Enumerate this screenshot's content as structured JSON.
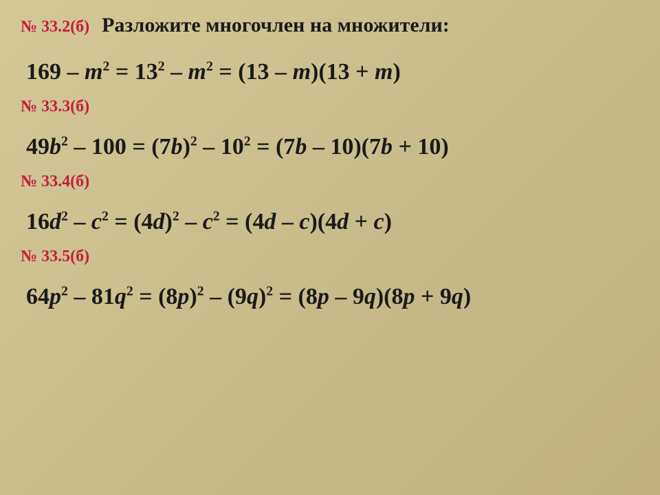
{
  "title": "Разложите многочлен на множители:",
  "colors": {
    "label_color": "#c41e3a",
    "text_color": "#1a1a1a",
    "bg_gradient_from": "#d4c896",
    "bg_gradient_to": "#bdb07e"
  },
  "typography": {
    "label_fontsize": 24,
    "title_fontsize": 30,
    "equation_fontsize": 34,
    "font_family": "Georgia, Times New Roman, serif"
  },
  "problems": [
    {
      "label": "№ 33.2(б)",
      "lhs_html": "169 – <span class='it'>m</span><sup>2</sup> =",
      "mid_html": "13<sup>2</sup> – <span class='it'>m</span><sup>2</sup> =",
      "rhs_html": "(13 – <span class='it'>m</span>)(13 + <span class='it'>m</span>)"
    },
    {
      "label": "№ 33.3(б)",
      "lhs_html": "49<span class='it'>b</span><sup>2</sup> – 100 =",
      "mid_html": "(7<span class='it'>b</span>)<sup>2</sup> – 10<sup>2</sup> =",
      "rhs_html": "(7<span class='it'>b</span> – 10)(7<span class='it'>b</span> + 10)"
    },
    {
      "label": "№ 33.4(б)",
      "lhs_html": "16<span class='it'>d</span><sup>2</sup> – <span class='it'>c</span><sup>2</sup> =",
      "mid_html": "(4<span class='it'>d</span>)<sup>2</sup> – <span class='it'>c</span><sup>2</sup> =",
      "rhs_html": "(4<span class='it'>d</span> – <span class='it'>c</span>)(4<span class='it'>d</span> + <span class='it'>c</span>)"
    },
    {
      "label": "№ 33.5(б)",
      "lhs_html": "64<span class='it'>p</span><sup>2</sup> – 81<span class='it'>q</span><sup>2</sup> =",
      "mid_html": "(8<span class='it'>p</span>)<sup>2</sup> – (9<span class='it'>q</span>)<sup>2</sup> =",
      "rhs_html": "(8<span class='it'>p</span> – 9<span class='it'>q</span>)(8<span class='it'>p</span> + 9<span class='it'>q</span>)"
    }
  ]
}
